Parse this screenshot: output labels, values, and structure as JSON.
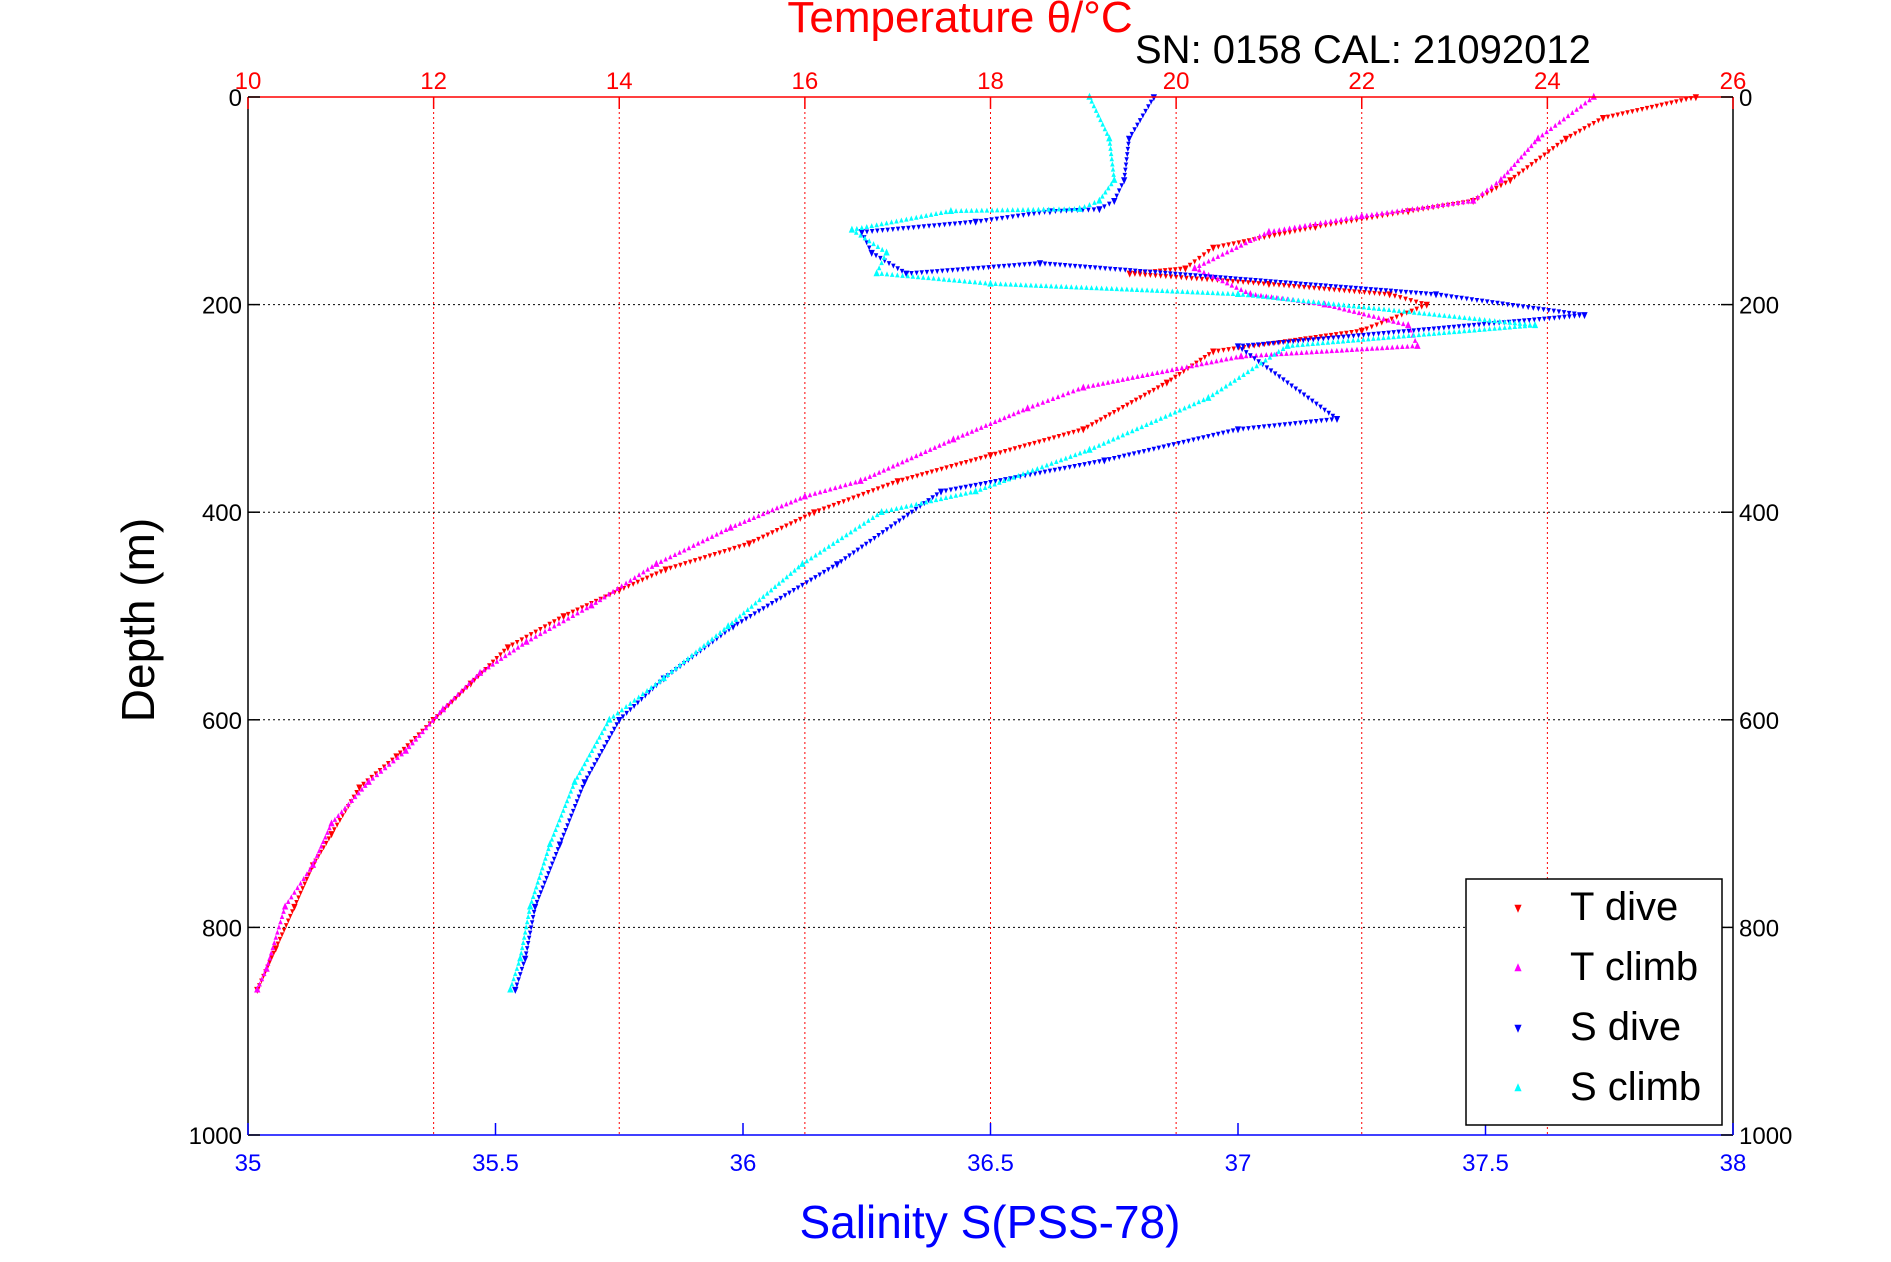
{
  "chart_data": {
    "type": "scatter",
    "title": "Temperature θ/°C",
    "subtitle": "SN: 0158  CAL: 21092012",
    "xlabel_bottom": "Salinity S(PSS-78)",
    "xlabel_top": "Temperature θ/°C",
    "ylabel": "Depth (m)",
    "y_axis": {
      "range": [
        0,
        1000
      ],
      "ticks": [
        0,
        200,
        400,
        600,
        800,
        1000
      ],
      "inverted": true
    },
    "x_bottom": {
      "range": [
        35,
        38
      ],
      "ticks": [
        35,
        35.5,
        36,
        36.5,
        37,
        37.5,
        38
      ],
      "tick_labels": [
        "35",
        "35.5",
        "36",
        "36.5",
        "37",
        "37.5",
        "38"
      ]
    },
    "x_top": {
      "range": [
        10,
        26
      ],
      "ticks": [
        10,
        12,
        14,
        16,
        18,
        20,
        22,
        24,
        26
      ],
      "tick_labels": [
        "10",
        "12",
        "14",
        "16",
        "18",
        "20",
        "22",
        "24",
        "26"
      ]
    },
    "grid": {
      "vertical": "top-axis ticks (red dotted)",
      "horizontal": "depth ticks (black dotted)"
    },
    "legend": {
      "position": "bottom-right",
      "entries": [
        "T dive",
        "T climb",
        "S dive",
        "S climb"
      ]
    },
    "colors": {
      "T dive": "#ff0000",
      "T climb": "#ff00ff",
      "S dive": "#0000ff",
      "S climb": "#00ffff",
      "top_axis": "#ff0000",
      "bottom_axis": "#0000ff"
    },
    "series": [
      {
        "name": "T dive",
        "axis": "top",
        "marker": "triangle-down",
        "x": [
          25.6,
          24.6,
          24.2,
          23.6,
          23.2,
          22.5,
          21.5,
          20.4,
          20.1,
          19.5,
          21.0,
          22.3,
          22.7,
          22.0,
          20.4,
          19.9,
          19.0,
          18.0,
          17.0,
          16.1,
          15.4,
          14.5,
          14.0,
          13.4,
          12.8,
          12.4,
          12.0,
          11.6,
          11.2,
          10.9,
          10.7,
          10.5,
          10.3,
          10.1
        ],
        "y": [
          0,
          20,
          40,
          80,
          100,
          110,
          125,
          145,
          165,
          170,
          180,
          190,
          200,
          225,
          245,
          275,
          320,
          345,
          370,
          400,
          430,
          455,
          475,
          500,
          530,
          565,
          600,
          635,
          665,
          710,
          740,
          780,
          820,
          860
        ]
      },
      {
        "name": "T climb",
        "axis": "top",
        "marker": "triangle-up",
        "x": [
          24.5,
          23.9,
          23.5,
          23.2,
          22.0,
          21.0,
          20.2,
          20.8,
          21.6,
          22.5,
          22.6,
          20.7,
          19.0,
          18.4,
          17.6,
          16.6,
          16.0,
          15.2,
          14.4,
          13.7,
          13.0,
          12.5,
          12.1,
          11.7,
          11.3,
          10.9,
          10.7,
          10.4,
          10.2,
          10.1
        ],
        "y": [
          0,
          40,
          80,
          100,
          115,
          130,
          165,
          190,
          200,
          220,
          240,
          250,
          280,
          300,
          330,
          370,
          385,
          415,
          450,
          490,
          525,
          555,
          590,
          630,
          660,
          700,
          740,
          780,
          840,
          860
        ]
      },
      {
        "name": "S dive",
        "axis": "bottom",
        "marker": "triangle-down",
        "x": [
          36.83,
          36.78,
          36.77,
          36.75,
          36.72,
          36.62,
          36.47,
          36.24,
          36.26,
          36.33,
          36.6,
          37.4,
          37.7,
          37.0,
          37.2,
          37.0,
          36.73,
          36.4,
          36.19,
          35.98,
          35.84,
          35.75,
          35.68,
          35.63,
          35.58,
          35.56,
          35.54
        ],
        "y": [
          0,
          40,
          80,
          100,
          108,
          110,
          120,
          130,
          150,
          170,
          160,
          190,
          210,
          240,
          310,
          320,
          350,
          380,
          450,
          510,
          560,
          600,
          660,
          720,
          780,
          830,
          860
        ]
      },
      {
        "name": "S climb",
        "axis": "bottom",
        "marker": "triangle-up",
        "x": [
          36.7,
          36.74,
          36.75,
          36.72,
          36.68,
          36.42,
          36.22,
          36.29,
          36.27,
          36.5,
          37.0,
          37.6,
          37.1,
          36.94,
          36.7,
          36.47,
          36.28,
          36.12,
          35.97,
          35.84,
          35.73,
          35.66,
          35.61,
          35.57,
          35.55,
          35.53
        ],
        "y": [
          0,
          40,
          80,
          100,
          108,
          110,
          128,
          150,
          170,
          180,
          190,
          220,
          240,
          290,
          340,
          380,
          400,
          450,
          510,
          560,
          600,
          660,
          720,
          780,
          830,
          860
        ]
      }
    ]
  }
}
